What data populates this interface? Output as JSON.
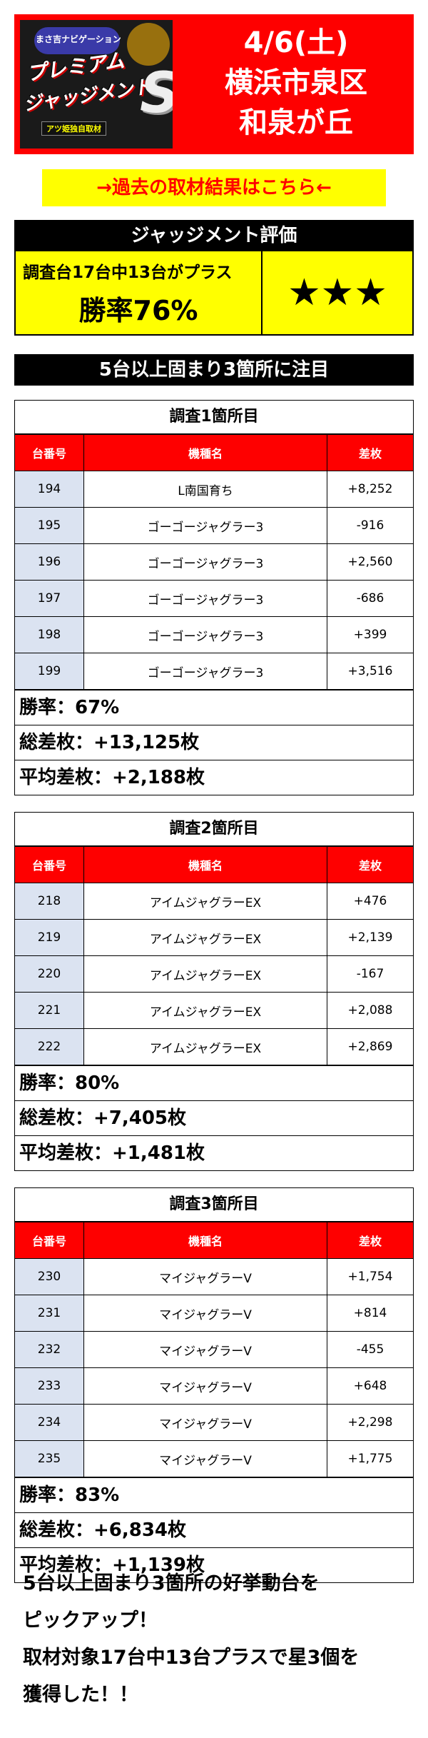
{
  "header": {
    "logo": {
      "top_text": "まさ吉ナビゲーション",
      "line1": "プレミアム",
      "line2": "ジャッジメント",
      "letter": "S",
      "bottom_text": "アツ姫独自取材"
    },
    "date": "4/6(土)",
    "area": "横浜市泉区",
    "location": "和泉が丘"
  },
  "past_link": "→過去の取材結果はこちら←",
  "judgment": {
    "title": "ジャッジメント評価",
    "condition": "調査台17台中13台がプラス",
    "win_rate": "勝率76%",
    "stars": "★★★"
  },
  "banner": "5台以上固まり3箇所に注目",
  "columns": [
    "台番号",
    "機種名",
    "差枚"
  ],
  "sections": [
    {
      "title": "調査1箇所目",
      "rows": [
        {
          "num": "194",
          "machine": "L南国育ち",
          "diff": "+8,252"
        },
        {
          "num": "195",
          "machine": "ゴーゴージャグラー3",
          "diff": "-916"
        },
        {
          "num": "196",
          "machine": "ゴーゴージャグラー3",
          "diff": "+2,560"
        },
        {
          "num": "197",
          "machine": "ゴーゴージャグラー3",
          "diff": "-686"
        },
        {
          "num": "198",
          "machine": "ゴーゴージャグラー3",
          "diff": "+399"
        },
        {
          "num": "199",
          "machine": "ゴーゴージャグラー3",
          "diff": "+3,516"
        }
      ],
      "win_rate": "勝率：67%",
      "total": "総差枚：+13,125枚",
      "average": "平均差枚：+2,188枚"
    },
    {
      "title": "調査2箇所目",
      "rows": [
        {
          "num": "218",
          "machine": "アイムジャグラーEX",
          "diff": "+476"
        },
        {
          "num": "219",
          "machine": "アイムジャグラーEX",
          "diff": "+2,139"
        },
        {
          "num": "220",
          "machine": "アイムジャグラーEX",
          "diff": "-167"
        },
        {
          "num": "221",
          "machine": "アイムジャグラーEX",
          "diff": "+2,088"
        },
        {
          "num": "222",
          "machine": "アイムジャグラーEX",
          "diff": "+2,869"
        }
      ],
      "win_rate": "勝率：80%",
      "total": "総差枚：+7,405枚",
      "average": "平均差枚：+1,481枚"
    },
    {
      "title": "調査3箇所目",
      "rows": [
        {
          "num": "230",
          "machine": "マイジャグラーV",
          "diff": "+1,754"
        },
        {
          "num": "231",
          "machine": "マイジャグラーV",
          "diff": "+814"
        },
        {
          "num": "232",
          "machine": "マイジャグラーV",
          "diff": "-455"
        },
        {
          "num": "233",
          "machine": "マイジャグラーV",
          "diff": "+648"
        },
        {
          "num": "234",
          "machine": "マイジャグラーV",
          "diff": "+2,298"
        },
        {
          "num": "235",
          "machine": "マイジャグラーV",
          "diff": "+1,775"
        }
      ],
      "win_rate": "勝率：83%",
      "total": "総差枚：+6,834枚",
      "average": "平均差枚：+1,139枚"
    }
  ],
  "conclusion": [
    "5台以上固まり3箇所の好挙動台を",
    "ピックアップ！",
    "取材対象17台中13台プラスで星3個を",
    "獲得した！！"
  ]
}
